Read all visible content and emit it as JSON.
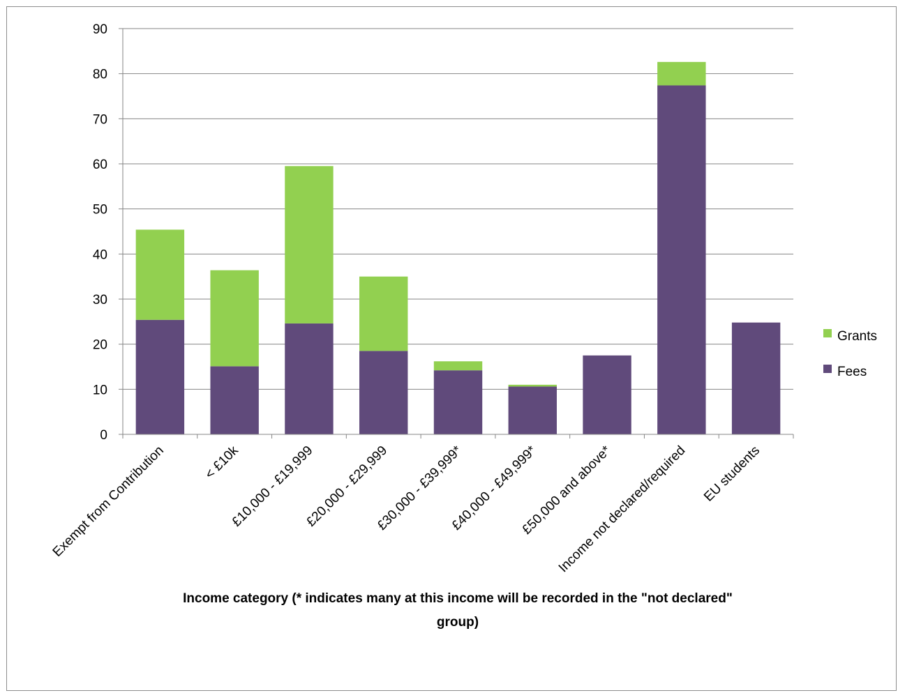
{
  "chart_data": {
    "type": "bar",
    "stacked": true,
    "categories": [
      "Exempt from Contribution",
      "< £10k",
      "£10,000 - £19,999",
      "£20,000 - £29,999",
      "£30,000 - £39,999*",
      "£40,000 - £49,999*",
      "£50,000 and above*",
      "Income not declared/required",
      "EU students"
    ],
    "series": [
      {
        "name": "Fees",
        "color": "#604a7b",
        "values": [
          25.4,
          15.1,
          24.6,
          18.5,
          14.2,
          10.6,
          17.5,
          77.4,
          24.8
        ]
      },
      {
        "name": "Grants",
        "color": "#92d050",
        "values": [
          20.0,
          21.3,
          34.9,
          16.5,
          2.0,
          0.4,
          0,
          5.2,
          0
        ]
      }
    ],
    "title": "",
    "xlabel_lines": [
      "Income category (* indicates many at this income will be recorded in the \"not declared\"",
      "group)"
    ],
    "ylabel": "",
    "ylim": [
      0,
      90
    ],
    "yticks": [
      "0",
      "10",
      "20",
      "30",
      "40",
      "50",
      "60",
      "70",
      "80",
      "90"
    ],
    "grid": true,
    "legend": {
      "placement": "right",
      "entries": [
        "Grants",
        "Fees"
      ]
    }
  }
}
